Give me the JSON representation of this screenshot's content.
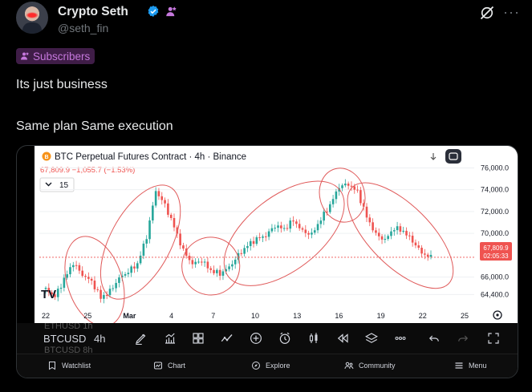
{
  "post": {
    "author_name": "Crypto Seth",
    "handle": "@seth_fin",
    "subscribers_label": "Subscribers",
    "lines": [
      "Its just business",
      "Same plan Same execution"
    ]
  },
  "colors": {
    "background": "#000000",
    "accent_verified": "#1d9bf0",
    "subscribers_bg": "#3f1d47",
    "subscribers_text": "#c678dd",
    "candle_up": "#26a69a",
    "candle_down": "#ef5350",
    "annotation": "#e05a5a"
  },
  "chart": {
    "title": "BTC Perpetual Futures Contract · 4h · Binance",
    "price_line": "67,809.9  −1,055.7 (−1.53%)",
    "interval_chip": "15",
    "price_tag": "67,809.9",
    "countdown": "02:05:33",
    "logo": "TV",
    "y_ticks": [
      "76,000.0",
      "74,000.0",
      "72,000.0",
      "70,000.0",
      "66,000.0",
      "64,400.0"
    ],
    "x_ticks": [
      "22",
      "25",
      "Mar",
      "4",
      "7",
      "10",
      "13",
      "16",
      "19",
      "22",
      "25"
    ]
  },
  "chart_data": {
    "type": "candlestick",
    "title": "BTC Perpetual Futures Contract · 4h · Binance",
    "ylim": [
      63400,
      76400
    ],
    "x_ticks": [
      "22",
      "25",
      "Mar",
      "4",
      "7",
      "10",
      "13",
      "16",
      "19",
      "22",
      "25"
    ],
    "y_ticks": [
      76000,
      74000,
      72000,
      70000,
      66000,
      64400
    ],
    "last_price": 67809.9,
    "trend_points": [
      [
        0,
        64900
      ],
      [
        6,
        64200
      ],
      [
        12,
        65800
      ],
      [
        18,
        67300
      ],
      [
        24,
        66200
      ],
      [
        30,
        65600
      ],
      [
        36,
        64100
      ],
      [
        42,
        64700
      ],
      [
        48,
        65900
      ],
      [
        54,
        66500
      ],
      [
        60,
        67200
      ],
      [
        66,
        69700
      ],
      [
        72,
        73900
      ],
      [
        78,
        72600
      ],
      [
        84,
        70600
      ],
      [
        90,
        68400
      ],
      [
        96,
        67200
      ],
      [
        102,
        67500
      ],
      [
        108,
        66600
      ],
      [
        114,
        66300
      ],
      [
        120,
        66900
      ],
      [
        126,
        68000
      ],
      [
        132,
        68900
      ],
      [
        138,
        69500
      ],
      [
        144,
        69800
      ],
      [
        150,
        70700
      ],
      [
        156,
        70400
      ],
      [
        162,
        71200
      ],
      [
        168,
        70200
      ],
      [
        174,
        69900
      ],
      [
        180,
        71300
      ],
      [
        186,
        72600
      ],
      [
        192,
        74300
      ],
      [
        198,
        74500
      ],
      [
        204,
        73800
      ],
      [
        210,
        71500
      ],
      [
        216,
        69900
      ],
      [
        222,
        69400
      ],
      [
        228,
        70500
      ],
      [
        234,
        70200
      ],
      [
        240,
        69300
      ],
      [
        246,
        68200
      ],
      [
        252,
        67800
      ]
    ],
    "annotations": [
      "ellipse: late Feb bottom",
      "ellipse: rally to 4 Mar high",
      "ellipse: dip near 9 Mar",
      "ellipse: rise 10–16 Mar",
      "ellipse: top near 16 Mar",
      "ellipse: decline to 22 Mar"
    ]
  },
  "toolbar": {
    "symbol": "BTCUSD",
    "interval": "4h",
    "ghost_top": "ETHUSD  1h",
    "ghost_bottom": "BTCUSD  8h",
    "icons": [
      "draw-icon",
      "indicators-icon",
      "layouts-icon",
      "compare-icon",
      "add-icon",
      "alert-icon",
      "candles-icon",
      "replay-icon",
      "layers-icon",
      "more-icon",
      "undo-icon",
      "redo-icon",
      "fullscreen-icon"
    ]
  },
  "tabs": [
    {
      "label": "Watchlist",
      "icon": "watchlist-icon"
    },
    {
      "label": "Chart",
      "icon": "chart-icon"
    },
    {
      "label": "Explore",
      "icon": "explore-icon"
    },
    {
      "label": "Community",
      "icon": "community-icon"
    },
    {
      "label": "Menu",
      "icon": "menu-icon"
    }
  ]
}
